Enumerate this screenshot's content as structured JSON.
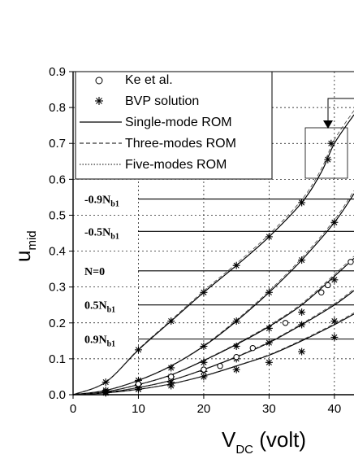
{
  "chart_data": {
    "type": "line",
    "xlabel": "V",
    "xlabel_sub": "DC",
    "xlabel_unit": " (volt)",
    "ylabel": "u",
    "ylabel_sub": "mid",
    "xlim": [
      0,
      43
    ],
    "ylim": [
      0,
      0.9
    ],
    "x_ticks": [
      "0",
      "10",
      "20",
      "30",
      "40"
    ],
    "y_ticks": [
      "0.0",
      "0.1",
      "0.2",
      "0.3",
      "0.4",
      "0.5",
      "0.6",
      "0.7",
      "0.8",
      "0.9"
    ],
    "grid": true,
    "legend_position": "top-left",
    "legend": [
      {
        "label": "Ke et al.",
        "marker": "circle"
      },
      {
        "label": "BVP solution",
        "marker": "asterisk"
      },
      {
        "label": "Single-mode ROM",
        "style": "solid"
      },
      {
        "label": "Three-modes ROM",
        "style": "dashed"
      },
      {
        "label": "Five-modes ROM",
        "style": "dotted"
      }
    ],
    "series": [
      {
        "label": "-0.9N",
        "label_sub": "b1",
        "label_at": 0.545,
        "x": [
          0,
          5,
          10,
          15,
          20,
          25,
          30,
          35,
          38,
          40,
          43
        ],
        "y": [
          0,
          0.035,
          0.125,
          0.205,
          0.285,
          0.36,
          0.44,
          0.535,
          0.62,
          0.7,
          0.78
        ]
      },
      {
        "label": "-0.5N",
        "label_sub": "b1",
        "label_at": 0.455,
        "x": [
          0,
          5,
          10,
          15,
          20,
          25,
          30,
          35,
          40,
          43
        ],
        "y": [
          0,
          0.012,
          0.04,
          0.08,
          0.135,
          0.205,
          0.285,
          0.375,
          0.48,
          0.56
        ]
      },
      {
        "label": "N=0",
        "label_sub": "",
        "label_at": 0.345,
        "x": [
          0,
          5,
          10,
          15,
          20,
          25,
          30,
          35,
          40,
          43
        ],
        "y": [
          0,
          0.008,
          0.028,
          0.055,
          0.095,
          0.14,
          0.19,
          0.25,
          0.33,
          0.38
        ]
      },
      {
        "label": "0.5N",
        "label_sub": "b1",
        "label_at": 0.25,
        "x": [
          0,
          5,
          10,
          15,
          20,
          25,
          30,
          35,
          40,
          43
        ],
        "y": [
          0,
          0.006,
          0.02,
          0.04,
          0.07,
          0.105,
          0.145,
          0.195,
          0.25,
          0.29
        ]
      },
      {
        "label": "0.9N",
        "label_sub": "b1",
        "label_at": 0.155,
        "x": [
          0,
          5,
          10,
          15,
          20,
          25,
          30,
          35,
          40,
          43
        ],
        "y": [
          0,
          0.005,
          0.015,
          0.03,
          0.052,
          0.08,
          0.11,
          0.15,
          0.195,
          0.225
        ]
      }
    ],
    "bvp_points": [
      [
        5,
        0.035
      ],
      [
        10,
        0.125
      ],
      [
        15,
        0.205
      ],
      [
        20,
        0.285
      ],
      [
        25,
        0.36
      ],
      [
        30,
        0.44
      ],
      [
        35,
        0.535
      ],
      [
        39,
        0.655
      ],
      [
        39.5,
        0.7
      ],
      [
        5,
        0.012
      ],
      [
        10,
        0.04
      ],
      [
        15,
        0.075
      ],
      [
        20,
        0.135
      ],
      [
        25,
        0.205
      ],
      [
        30,
        0.285
      ],
      [
        35,
        0.375
      ],
      [
        40,
        0.48
      ],
      [
        5,
        0.008
      ],
      [
        10,
        0.028
      ],
      [
        15,
        0.05
      ],
      [
        20,
        0.09
      ],
      [
        25,
        0.135
      ],
      [
        30,
        0.185
      ],
      [
        35,
        0.23
      ],
      [
        40,
        0.32
      ],
      [
        5,
        0.006
      ],
      [
        10,
        0.02
      ],
      [
        15,
        0.035
      ],
      [
        20,
        0.065
      ],
      [
        25,
        0.1
      ],
      [
        30,
        0.145
      ],
      [
        35,
        0.195
      ],
      [
        40,
        0.205
      ],
      [
        5,
        0.005
      ],
      [
        10,
        0.015
      ],
      [
        15,
        0.025
      ],
      [
        20,
        0.05
      ],
      [
        25,
        0.07
      ],
      [
        30,
        0.09
      ],
      [
        35,
        0.12
      ],
      [
        40,
        0.16
      ]
    ],
    "ke_points": [
      [
        10,
        0.03
      ],
      [
        15,
        0.05
      ],
      [
        20,
        0.07
      ],
      [
        22.5,
        0.08
      ],
      [
        25,
        0.105
      ],
      [
        27.5,
        0.13
      ],
      [
        32.5,
        0.2
      ],
      [
        38,
        0.285
      ],
      [
        39,
        0.305
      ],
      [
        42.5,
        0.37
      ]
    ]
  }
}
